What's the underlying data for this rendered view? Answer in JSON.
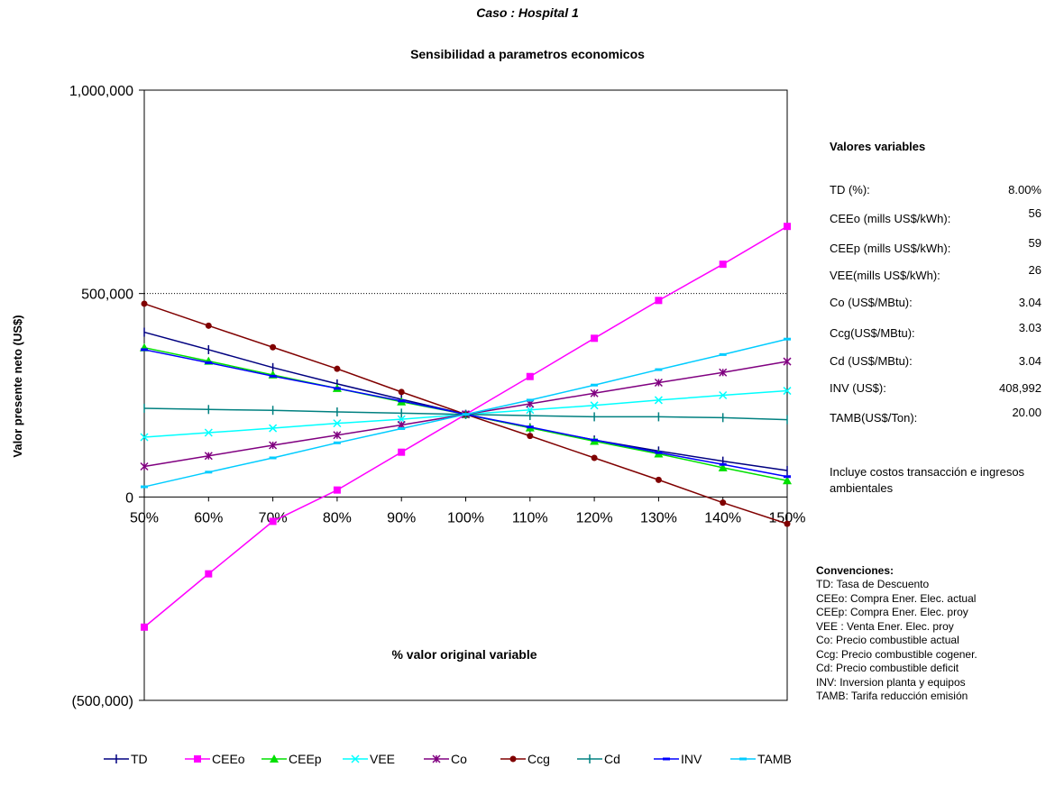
{
  "case_label": "Caso :  Hospital 1",
  "chart_data": {
    "type": "line",
    "title": "Sensibilidad a parametros economicos",
    "xlabel": "% valor original variable",
    "ylabel": "Valor presente neto (US$)",
    "categories": [
      "50%",
      "60%",
      "70%",
      "80%",
      "90%",
      "100%",
      "110%",
      "120%",
      "130%",
      "140%",
      "150%"
    ],
    "x": [
      50,
      60,
      70,
      80,
      90,
      100,
      110,
      120,
      130,
      140,
      150
    ],
    "ylim": [
      -500000,
      1000000
    ],
    "y_ticks": [
      1000000,
      500000,
      0,
      -500000
    ],
    "y_tick_labels": [
      "1,000,000",
      "500,000",
      "0",
      "(500,000)"
    ],
    "reference_line": 500000,
    "legend_position": "bottom",
    "series": [
      {
        "name": "TD",
        "color": "#000080",
        "marker": "plus",
        "values": [
          405000,
          362000,
          318000,
          278000,
          240000,
          203000,
          170000,
          140000,
          113000,
          88000,
          65000
        ]
      },
      {
        "name": "CEEo",
        "color": "#ff00ff",
        "marker": "square",
        "values": [
          -320000,
          -189000,
          -60000,
          17000,
          110000,
          203000,
          296000,
          390000,
          483000,
          572000,
          665000
        ]
      },
      {
        "name": "CEEp",
        "color": "#00e000",
        "marker": "triangle",
        "values": [
          367000,
          334000,
          300000,
          267000,
          234000,
          203000,
          170000,
          137000,
          106000,
          72000,
          40000
        ]
      },
      {
        "name": "VEE",
        "color": "#00ffff",
        "marker": "x",
        "values": [
          147000,
          158000,
          169000,
          181000,
          191000,
          203000,
          214000,
          225000,
          238000,
          250000,
          261000
        ]
      },
      {
        "name": "Co",
        "color": "#800080",
        "marker": "asterisk",
        "values": [
          75000,
          101000,
          127000,
          152000,
          177000,
          203000,
          229000,
          255000,
          281000,
          306000,
          333000
        ]
      },
      {
        "name": "Ccg",
        "color": "#800000",
        "marker": "circle",
        "values": [
          475000,
          421000,
          368000,
          315000,
          258000,
          203000,
          150000,
          96000,
          42000,
          -14000,
          -66000
        ]
      },
      {
        "name": "Cd",
        "color": "#008080",
        "marker": "plus",
        "values": [
          218000,
          215000,
          213000,
          209000,
          206000,
          203000,
          200000,
          197000,
          197000,
          195000,
          190000
        ]
      },
      {
        "name": "INV",
        "color": "#0000ff",
        "marker": "dash",
        "values": [
          362000,
          330000,
          297000,
          267000,
          236000,
          203000,
          172000,
          140000,
          109000,
          80000,
          50000
        ]
      },
      {
        "name": "TAMB",
        "color": "#00ccff",
        "marker": "dash",
        "values": [
          25000,
          61000,
          96000,
          133000,
          168000,
          203000,
          238000,
          275000,
          313000,
          350000,
          388000
        ]
      }
    ]
  },
  "variables_panel": {
    "title": "Valores variables",
    "items": [
      {
        "label": "TD (%):",
        "value": "8.00%"
      },
      {
        "label": "CEEo (mills US$/kWh):",
        "value": "56"
      },
      {
        "label": "CEEp (mills US$/kWh):",
        "value": "59"
      },
      {
        "label": "VEE(mills US$/kWh):",
        "value": "26"
      },
      {
        "label": "Co (US$/MBtu):",
        "value": "3.04"
      },
      {
        "label": "Ccg(US$/MBtu):",
        "value": "3.03"
      },
      {
        "label": "Cd (US$/MBtu):",
        "value": "3.04"
      },
      {
        "label": "INV  (US$):",
        "value": "408,992"
      },
      {
        "label": "TAMB(US$/Ton):",
        "value": "20.00"
      }
    ],
    "note": "Incluye costos transacción e ingresos ambientales"
  },
  "conventions": {
    "title": "Convenciones:",
    "items": [
      "TD: Tasa de Descuento",
      "CEEo: Compra Ener. Elec. actual",
      "CEEp: Compra Ener. Elec. proy",
      "VEE : Venta Ener. Elec. proy",
      "Co:  Precio combustible actual",
      "Ccg: Precio combustible cogener.",
      "Cd: Precio combustible deficit",
      "INV: Inversion planta y equipos",
      "TAMB: Tarifa reducción emisión"
    ]
  }
}
